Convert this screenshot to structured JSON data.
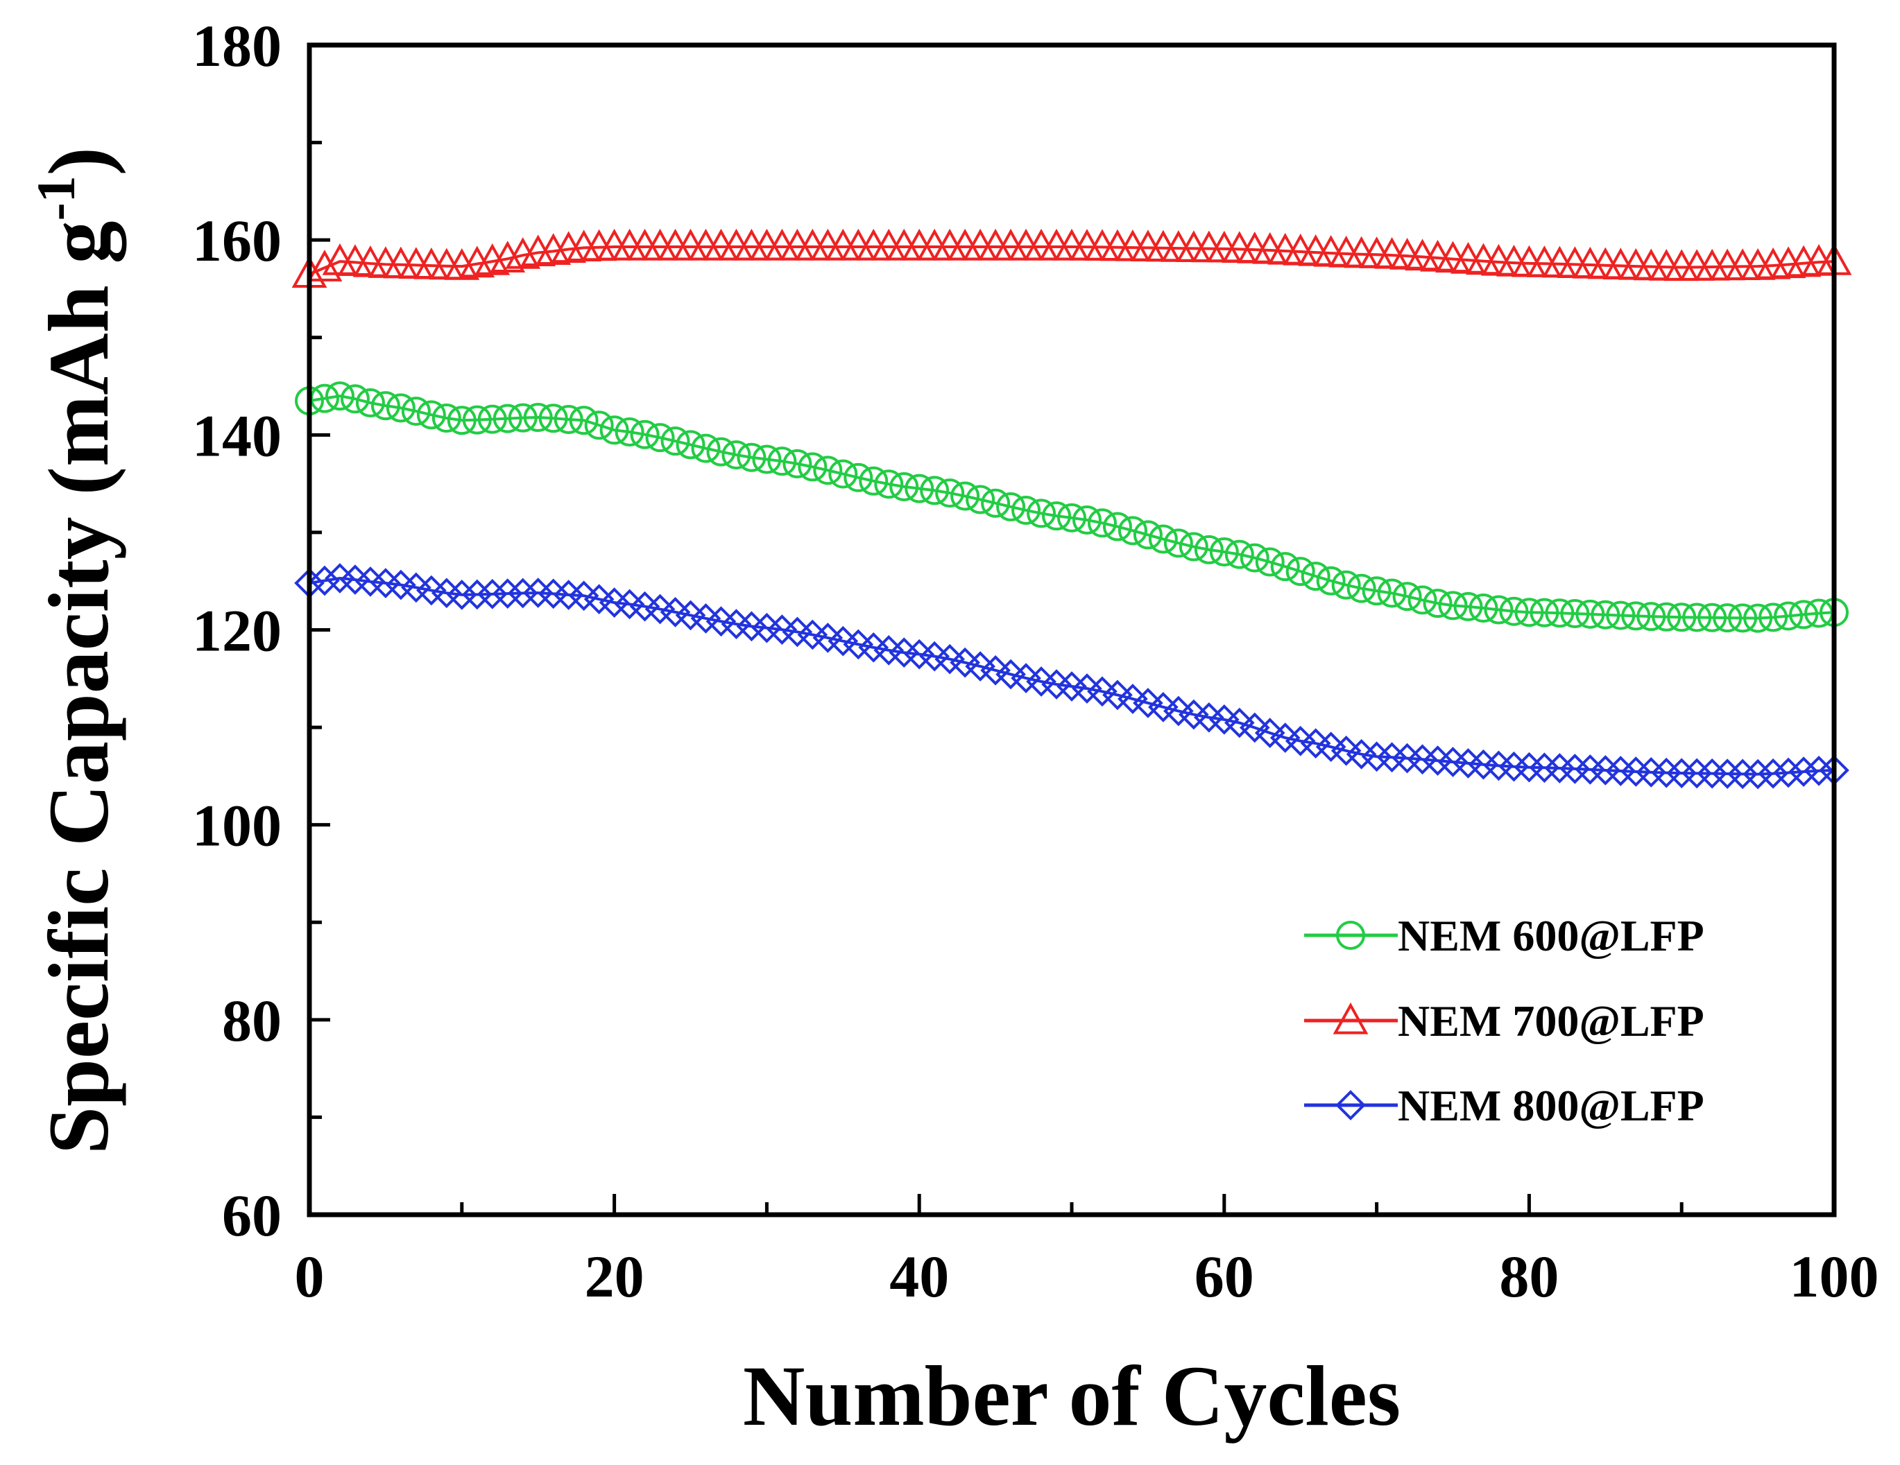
{
  "chart_data": {
    "type": "line",
    "title": "",
    "xlabel": "Number of Cycles",
    "ylabel": "Specific Capacity (mAh g",
    "ylabel_superscript": "-1",
    "ylabel_close": ")",
    "xlim": [
      0,
      100
    ],
    "ylim": [
      60,
      180
    ],
    "xticks": [
      "0",
      "20",
      "40",
      "60",
      "80",
      "100"
    ],
    "yticks": [
      "60",
      "80",
      "100",
      "120",
      "140",
      "160",
      "180"
    ],
    "x_minor_step": 10,
    "y_minor_step": 10,
    "legend_position": "lower-right",
    "series": [
      {
        "name": "NEM 600@LFP",
        "color": "#22cc44",
        "marker": "circle",
        "anchors_x": [
          0,
          2,
          5,
          10,
          15,
          18,
          20,
          30,
          40,
          50,
          60,
          70,
          75,
          80,
          90,
          95,
          100
        ],
        "anchors_y": [
          143.5,
          144,
          143,
          141.5,
          141.8,
          141.5,
          140.5,
          137.5,
          134.5,
          131.5,
          128,
          124,
          122.5,
          121.8,
          121.3,
          121.2,
          121.8
        ]
      },
      {
        "name": "NEM 700@LFP",
        "color": "#ee2222",
        "marker": "triangle",
        "anchors_x": [
          0,
          2,
          5,
          10,
          12,
          15,
          18,
          20,
          30,
          40,
          50,
          60,
          70,
          80,
          90,
          95,
          100
        ],
        "anchors_y": [
          156.5,
          157.8,
          157.5,
          157.3,
          157.8,
          158.7,
          159.2,
          159.3,
          159.3,
          159.3,
          159.3,
          159.1,
          158.5,
          157.6,
          157.2,
          157.3,
          157.8
        ]
      },
      {
        "name": "NEM 800@LFP",
        "color": "#2233dd",
        "marker": "diamond",
        "anchors_x": [
          0,
          2,
          5,
          10,
          15,
          18,
          20,
          30,
          40,
          50,
          60,
          65,
          70,
          80,
          90,
          95,
          100
        ],
        "anchors_y": [
          124.8,
          125.3,
          124.8,
          123.6,
          123.8,
          123.5,
          122.8,
          120.2,
          117.5,
          114.2,
          110.8,
          108.6,
          107,
          105.9,
          105.3,
          105.2,
          105.6
        ]
      }
    ]
  }
}
